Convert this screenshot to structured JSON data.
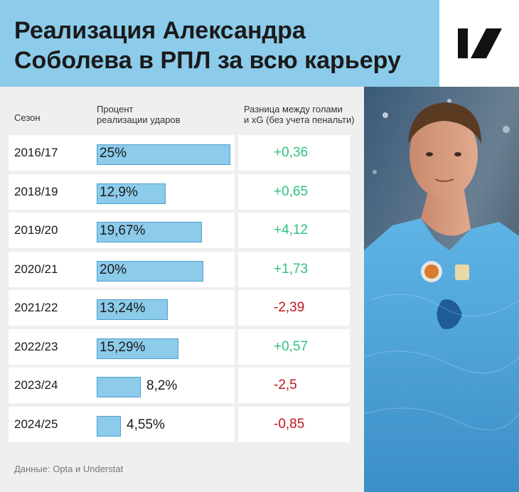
{
  "title_line1": "Реализация Александра",
  "title_line2": "Соболева в РПЛ за всю карьеру",
  "headers": {
    "season": "Сезон",
    "pct_line1": "Процент",
    "pct_line2": "реализации ударов",
    "diff_line1": "Разница между голами",
    "diff_line2": "и xG (без учета пенальти)"
  },
  "source": "Данные: Opta и Understat",
  "colors": {
    "header_bg": "#8ccbea",
    "bar_fill": "#8ccbea",
    "positive": "#2ec27e",
    "negative": "#c0161c"
  },
  "chart_data": {
    "type": "table",
    "columns": [
      "Сезон",
      "Процент реализации ударов",
      "Разница между голами и xG (без учета пенальти)"
    ],
    "bar_max": 25,
    "rows": [
      {
        "season": "2016/17",
        "pct": 25,
        "pct_label": "25%",
        "diff": 0.36,
        "diff_label": "+0,36"
      },
      {
        "season": "2018/19",
        "pct": 12.9,
        "pct_label": "12,9%",
        "diff": 0.65,
        "diff_label": "+0,65"
      },
      {
        "season": "2019/20",
        "pct": 19.67,
        "pct_label": "19,67%",
        "diff": 4.12,
        "diff_label": "+4,12"
      },
      {
        "season": "2020/21",
        "pct": 20,
        "pct_label": "20%",
        "diff": 1.73,
        "diff_label": "+1,73"
      },
      {
        "season": "2021/22",
        "pct": 13.24,
        "pct_label": "13,24%",
        "diff": -2.39,
        "diff_label": "-2,39"
      },
      {
        "season": "2022/23",
        "pct": 15.29,
        "pct_label": "15,29%",
        "diff": 0.57,
        "diff_label": "+0,57"
      },
      {
        "season": "2023/24",
        "pct": 8.2,
        "pct_label": "8,2%",
        "diff": -2.5,
        "diff_label": "-2,5"
      },
      {
        "season": "2024/25",
        "pct": 4.55,
        "pct_label": "4,55%",
        "diff": -0.85,
        "diff_label": "-0,85"
      }
    ]
  }
}
